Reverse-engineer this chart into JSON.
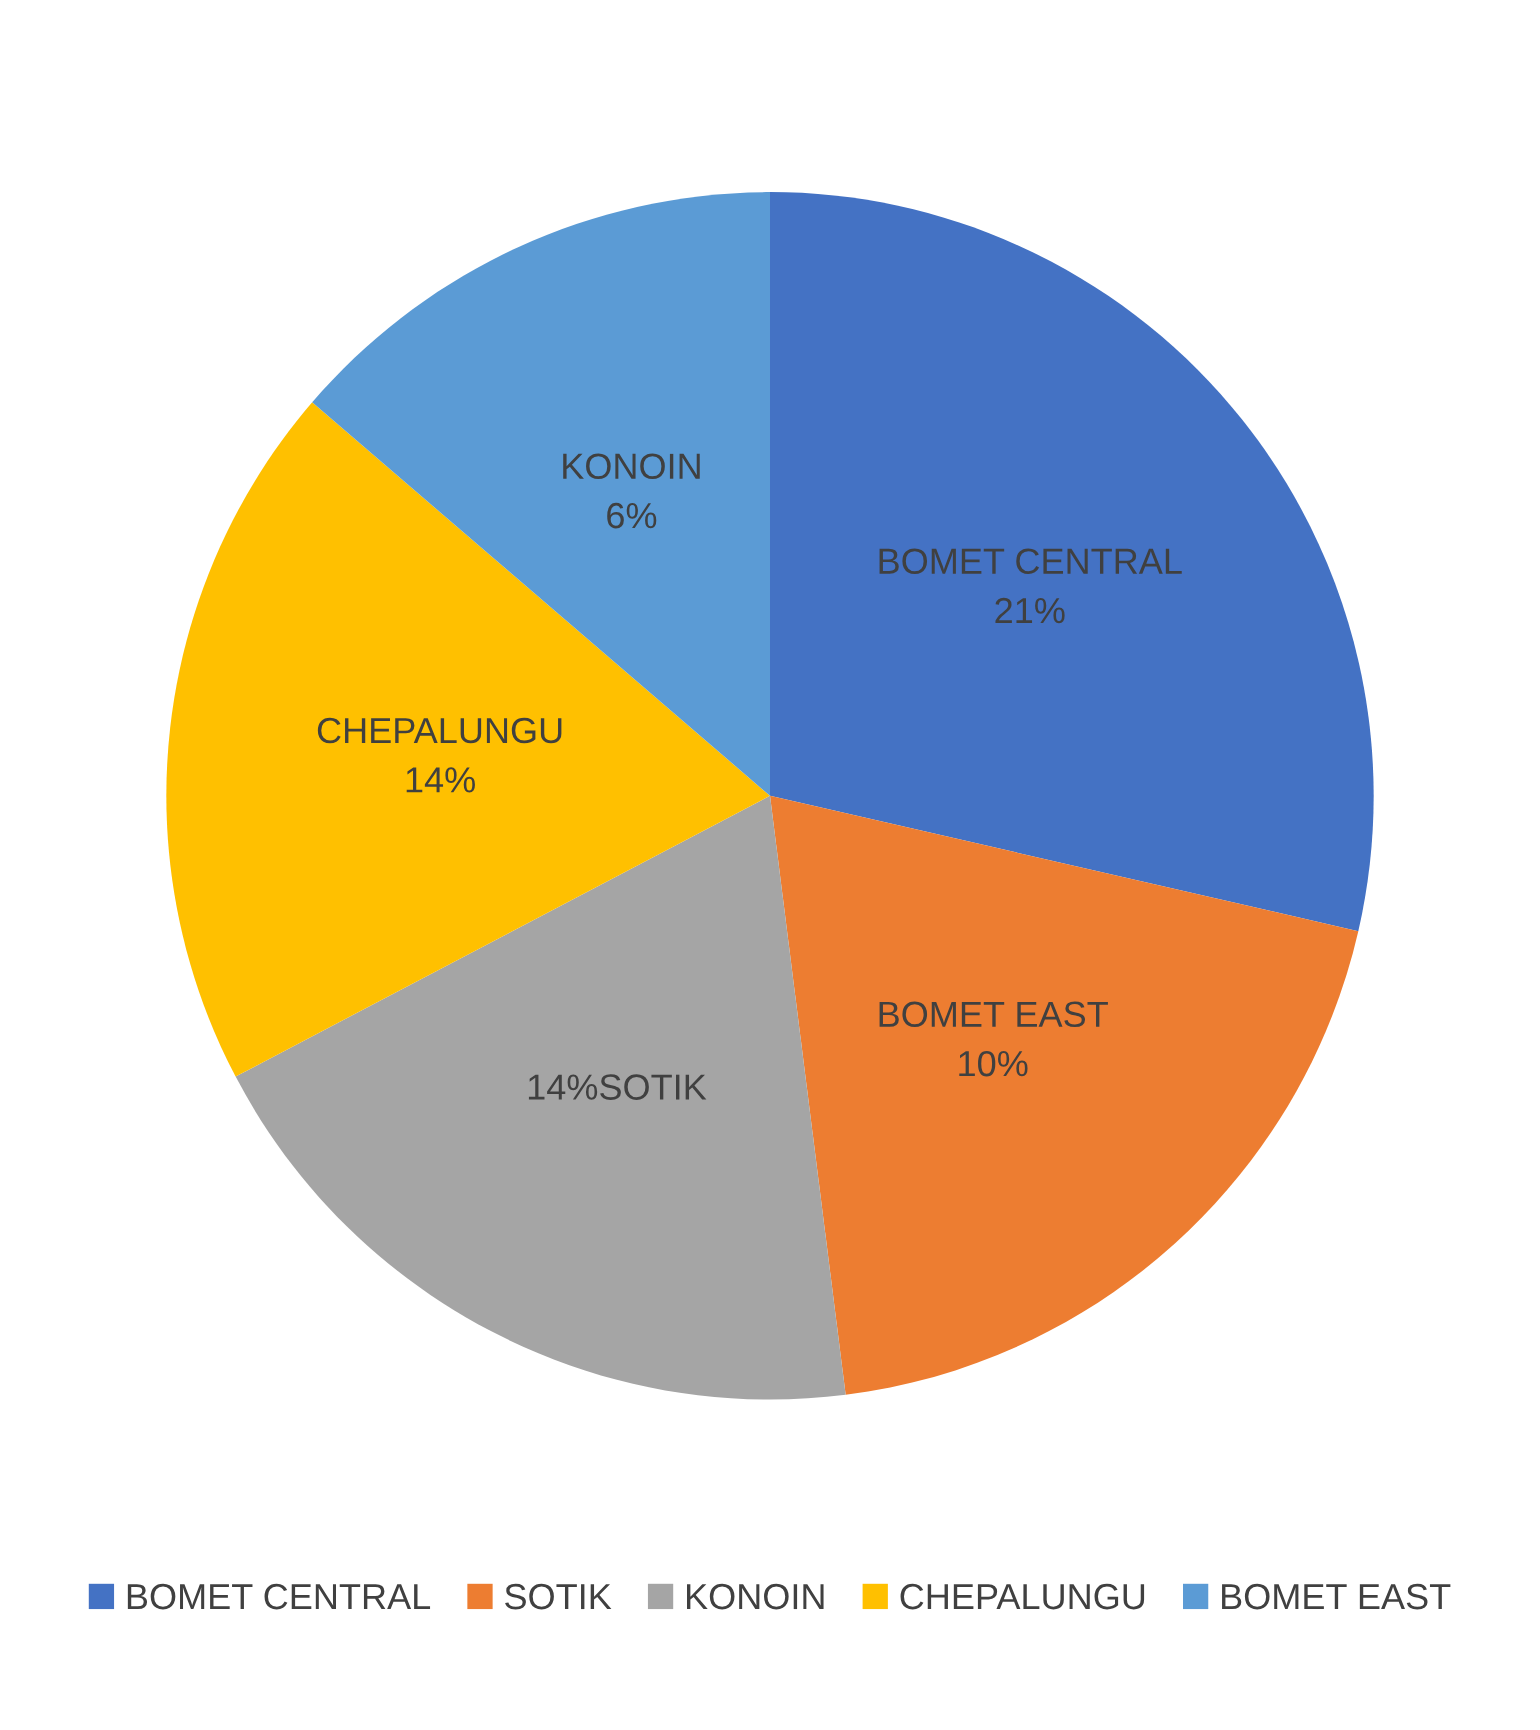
{
  "chart_data": {
    "type": "pie",
    "categories": [
      "BOMET CENTRAL",
      "SOTIK",
      "KONOIN",
      "CHEPALUNGU",
      "BOMET EAST"
    ],
    "values": [
      28.6,
      19.4,
      19.3,
      19.0,
      13.7
    ],
    "colors": [
      "#4472c4",
      "#ed7d31",
      "#a5a5a5",
      "#ffc000",
      "#5b9bd5"
    ],
    "annotations": [
      "BOMET CENTRAL\n21%",
      "BOMET EAST\n10%",
      "14%SOTIK",
      "CHEPALUNGU\n14%",
      "KONOIN\n6%"
    ],
    "legend": "bottom"
  }
}
